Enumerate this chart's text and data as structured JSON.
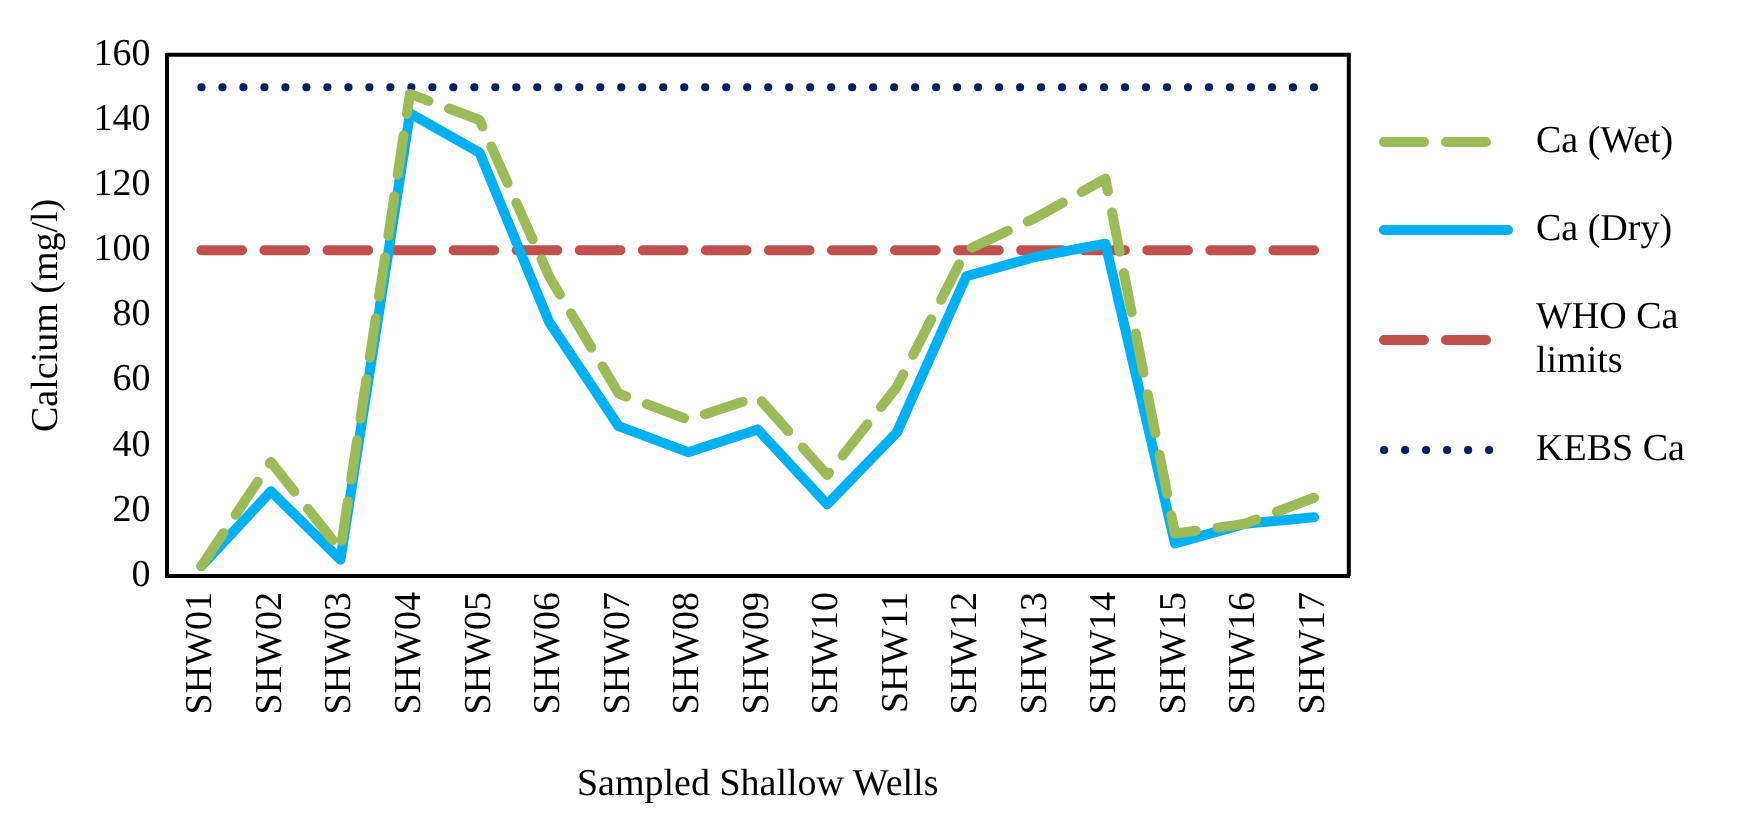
{
  "chart_data": {
    "type": "line",
    "xlabel": "Sampled Shallow Wells",
    "ylabel": "Calcium (mg/l)",
    "categories": [
      "SHW01",
      "SHW02",
      "SHW03",
      "SHW04",
      "SHW05",
      "SHW06",
      "SHW07",
      "SHW08",
      "SHW09",
      "SHW10",
      "SHW11",
      "SHW12",
      "SHW13",
      "SHW14",
      "SHW15",
      "SHW16",
      "SHW17"
    ],
    "series": [
      {
        "name": "Ca (Wet)",
        "color": "#9bbb59",
        "line_style": "dashed",
        "values": [
          3,
          35,
          8,
          148,
          140,
          92,
          56,
          48,
          55,
          31,
          58,
          100,
          110,
          122,
          13,
          16,
          24
        ]
      },
      {
        "name": "Ca (Dry)",
        "color": "#00b0f0",
        "line_style": "solid",
        "values": [
          3,
          26,
          5,
          142,
          130,
          78,
          46,
          38,
          45,
          22,
          44,
          92,
          98,
          102,
          10,
          16,
          18
        ]
      },
      {
        "name": "WHO Ca limits",
        "color": "#c0504d",
        "line_style": "dashed",
        "values": [
          100,
          100,
          100,
          100,
          100,
          100,
          100,
          100,
          100,
          100,
          100,
          100,
          100,
          100,
          100,
          100,
          100
        ]
      },
      {
        "name": "KEBS Ca",
        "color": "#002060",
        "line_style": "dotted",
        "values": [
          150,
          150,
          150,
          150,
          150,
          150,
          150,
          150,
          150,
          150,
          150,
          150,
          150,
          150,
          150,
          150,
          150
        ]
      }
    ],
    "ylim": [
      0,
      160
    ],
    "yticks": [
      0,
      20,
      40,
      60,
      80,
      100,
      120,
      140,
      160
    ],
    "grid": false,
    "legend": "right",
    "marker": "none"
  }
}
